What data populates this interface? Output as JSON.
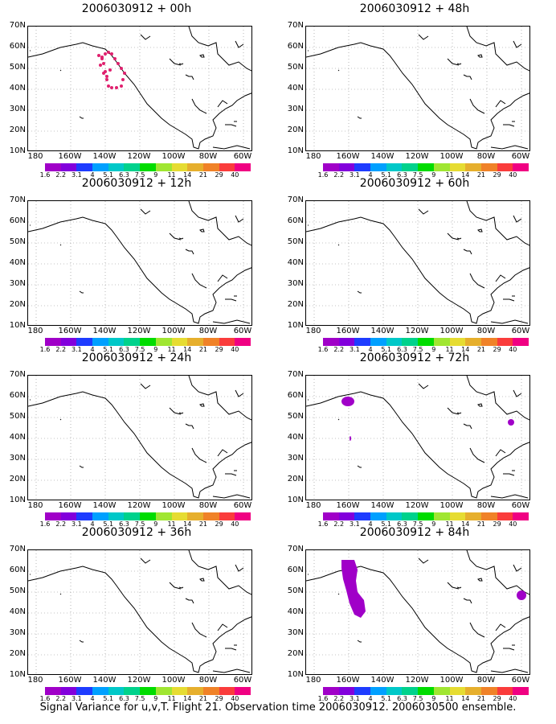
{
  "caption": "Signal Variance for u,v,T. Flight 21. Observation time 2006030912. 2006030500 ensemble.",
  "panels": [
    {
      "title": "2006030912 + 00h"
    },
    {
      "title": "2006030912 + 48h"
    },
    {
      "title": "2006030912 + 12h"
    },
    {
      "title": "2006030912 + 60h"
    },
    {
      "title": "2006030912 + 24h"
    },
    {
      "title": "2006030912 + 72h"
    },
    {
      "title": "2006030912 + 36h"
    },
    {
      "title": "2006030912 + 84h"
    }
  ],
  "axes": {
    "lat_labels": [
      "70N",
      "60N",
      "50N",
      "40N",
      "30N",
      "20N",
      "10N"
    ],
    "lon_labels": [
      "180",
      "160W",
      "140W",
      "120W",
      "100W",
      "80W",
      "60W"
    ]
  },
  "colorbar": {
    "labels": [
      "1.6",
      "2.2",
      "3.1",
      "4",
      "5.1",
      "6.3",
      "7.5",
      "9",
      "11",
      "14",
      "21",
      "29",
      "40"
    ],
    "colors": [
      "#a000c8",
      "#8200dc",
      "#1e3cff",
      "#00a0ff",
      "#00c8c8",
      "#00d28c",
      "#00dc00",
      "#a0e632",
      "#e6dc32",
      "#e6af2d",
      "#f08228",
      "#fa3c3c",
      "#f00082"
    ]
  },
  "symbols": {
    "obs_color": "#e0206e",
    "variance_color": "#a000c8"
  }
}
